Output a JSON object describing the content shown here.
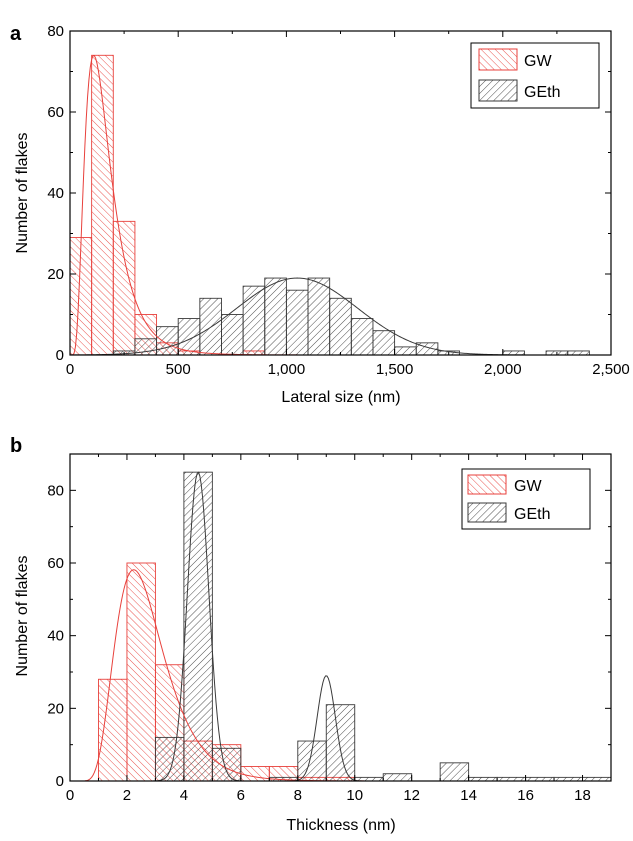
{
  "colors": {
    "gw": "#e8413c",
    "geth": "#3a3a3a",
    "axis": "#000000"
  },
  "chart_data": [
    {
      "panel_label": "a",
      "type": "bar",
      "xlabel": "Lateral size (nm)",
      "ylabel": "Number of flakes",
      "xlim": [
        0,
        2500
      ],
      "ylim": [
        0,
        80
      ],
      "xticks": [
        0,
        500,
        1000,
        1500,
        2000,
        2500
      ],
      "xtick_labels": [
        "0",
        "500",
        "1,000",
        "1,500",
        "2,000",
        "2,500"
      ],
      "yticks": [
        0,
        20,
        40,
        60,
        80
      ],
      "ytick_labels": [
        "0",
        "20",
        "40",
        "60",
        "80"
      ],
      "legend_position": "top-right",
      "series": [
        {
          "name": "GW",
          "color": "#e8413c",
          "bins": [
            [
              0,
              100,
              29
            ],
            [
              100,
              200,
              74
            ],
            [
              200,
              300,
              33
            ],
            [
              300,
              400,
              10
            ],
            [
              400,
              500,
              3
            ],
            [
              500,
              600,
              1
            ],
            [
              800,
              900,
              1
            ]
          ],
          "fit": {
            "shape": "lognormal",
            "mu": 5.0,
            "sigma": 0.55,
            "peak_x": 110,
            "peak_y": 74
          }
        },
        {
          "name": "GEth",
          "color": "#3a3a3a",
          "bins": [
            [
              200,
              300,
              1
            ],
            [
              300,
              400,
              4
            ],
            [
              400,
              500,
              7
            ],
            [
              500,
              600,
              9
            ],
            [
              600,
              700,
              14
            ],
            [
              700,
              800,
              10
            ],
            [
              800,
              900,
              17
            ],
            [
              900,
              1000,
              19
            ],
            [
              1000,
              1100,
              16
            ],
            [
              1100,
              1200,
              19
            ],
            [
              1200,
              1300,
              14
            ],
            [
              1300,
              1400,
              9
            ],
            [
              1400,
              1500,
              6
            ],
            [
              1500,
              1600,
              2
            ],
            [
              1600,
              1700,
              3
            ],
            [
              1700,
              1800,
              1
            ],
            [
              2000,
              2100,
              1
            ],
            [
              2200,
              2300,
              1
            ],
            [
              2300,
              2400,
              1
            ]
          ],
          "fit": {
            "shape": "gaussian",
            "mean": 1050,
            "sd": 280,
            "peak_y": 19
          }
        }
      ]
    },
    {
      "panel_label": "b",
      "type": "bar",
      "xlabel": "Thickness (nm)",
      "ylabel": "Number of flakes",
      "xlim": [
        0,
        19
      ],
      "ylim": [
        0,
        90
      ],
      "xticks": [
        0,
        2,
        4,
        6,
        8,
        10,
        12,
        14,
        16,
        18
      ],
      "xtick_labels": [
        "0",
        "2",
        "4",
        "6",
        "8",
        "10",
        "12",
        "14",
        "16",
        "18"
      ],
      "yticks": [
        0,
        20,
        40,
        60,
        80
      ],
      "ytick_labels": [
        "0",
        "20",
        "40",
        "60",
        "80"
      ],
      "legend_position": "top-right",
      "series": [
        {
          "name": "GW",
          "color": "#e8413c",
          "bins": [
            [
              1,
              2,
              28
            ],
            [
              2,
              3,
              60
            ],
            [
              3,
              4,
              32
            ],
            [
              4,
              5,
              11
            ],
            [
              5,
              6,
              10
            ],
            [
              6,
              7,
              4
            ],
            [
              7,
              8,
              4
            ],
            [
              8,
              9,
              1
            ],
            [
              9,
              10,
              1
            ]
          ],
          "fit": {
            "shape": "lognormal",
            "mu": 0.95,
            "sigma": 0.38,
            "peak_x": 2.3,
            "peak_y": 58
          }
        },
        {
          "name": "GEth",
          "color": "#3a3a3a",
          "bins": [
            [
              3,
              4,
              12
            ],
            [
              4,
              5,
              85
            ],
            [
              5,
              6,
              9
            ],
            [
              7,
              8,
              1
            ],
            [
              8,
              9,
              11
            ],
            [
              9,
              10,
              21
            ],
            [
              10,
              11,
              1
            ],
            [
              11,
              12,
              2
            ],
            [
              13,
              14,
              5
            ],
            [
              14,
              15,
              1
            ],
            [
              15,
              16,
              1
            ],
            [
              16,
              17,
              1
            ],
            [
              17,
              18,
              1
            ],
            [
              18,
              19,
              1
            ]
          ],
          "fit": {
            "shape": "gaussian_pair",
            "components": [
              {
                "mean": 4.5,
                "sd": 0.38,
                "peak_y": 85
              },
              {
                "mean": 9.0,
                "sd": 0.32,
                "peak_y": 29
              }
            ]
          }
        }
      ]
    }
  ]
}
